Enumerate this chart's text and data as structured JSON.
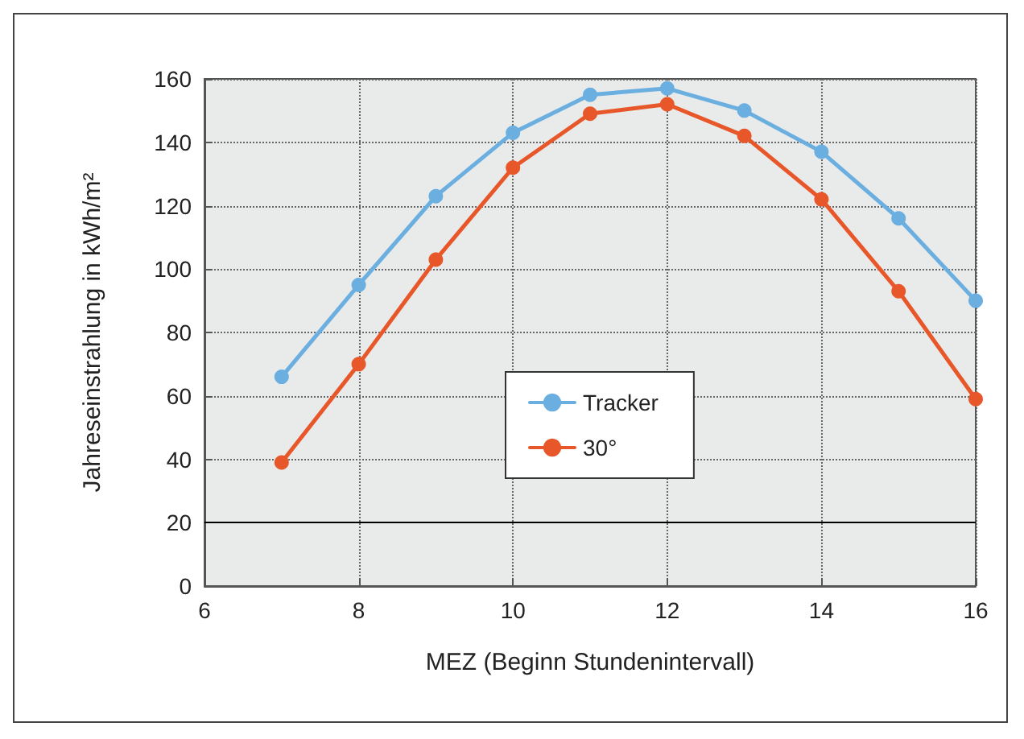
{
  "chart_data": {
    "type": "line",
    "xlabel": "MEZ (Beginn Stundenintervall)",
    "ylabel": "Jahreseinstrahlung in kWh/m²",
    "x": [
      7,
      8,
      9,
      10,
      11,
      12,
      13,
      14,
      15,
      16
    ],
    "series": [
      {
        "name": "Tracker",
        "color": "#6aafe0",
        "values": [
          66,
          95,
          123,
          143,
          155,
          157,
          150,
          137,
          116,
          90
        ]
      },
      {
        "name": "30°",
        "color": "#e8572a",
        "values": [
          39,
          70,
          103,
          132,
          149,
          152,
          142,
          122,
          93,
          59
        ]
      }
    ],
    "xlim": [
      6,
      16
    ],
    "xticks": [
      6,
      8,
      10,
      12,
      14,
      16
    ],
    "ylim": [
      0,
      160
    ],
    "yticks": [
      0,
      20,
      40,
      60,
      80,
      100,
      120,
      140,
      160
    ],
    "grid": true,
    "legend": "center",
    "marker": "circle",
    "line_style": "solid",
    "ref_lines": [
      {
        "axis": "y",
        "value": 20,
        "color": "#000000",
        "line_style": "solid"
      }
    ]
  }
}
